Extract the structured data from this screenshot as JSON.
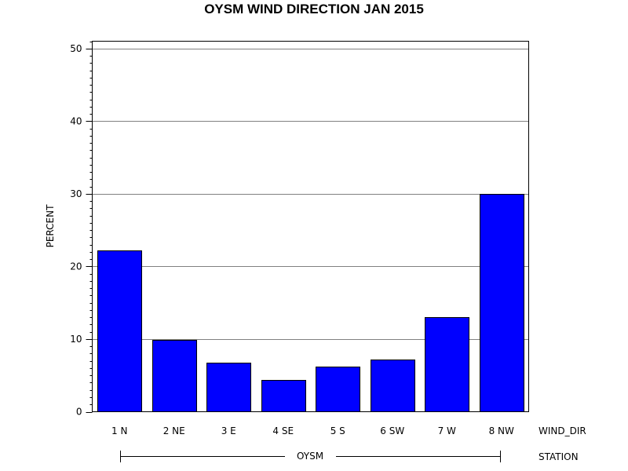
{
  "chart_data": {
    "type": "bar",
    "title": "OYSM WIND DIRECTION JAN 2015",
    "ylabel": "PERCENT",
    "xlabel": "WIND_DIR",
    "categories": [
      "1 N",
      "2 NE",
      "3 E",
      "4 SE",
      "5 S",
      "6 SW",
      "7 W",
      "8 NW"
    ],
    "values": [
      22.2,
      9.9,
      6.7,
      4.4,
      6.2,
      7.2,
      13.0,
      30.0
    ],
    "ylim": [
      0,
      51
    ],
    "yticks": [
      0,
      10,
      20,
      30,
      40,
      50
    ],
    "grid": true,
    "group_label": "OYSM",
    "group_axis_label": "STATION",
    "bar_color": "#0000ff"
  }
}
